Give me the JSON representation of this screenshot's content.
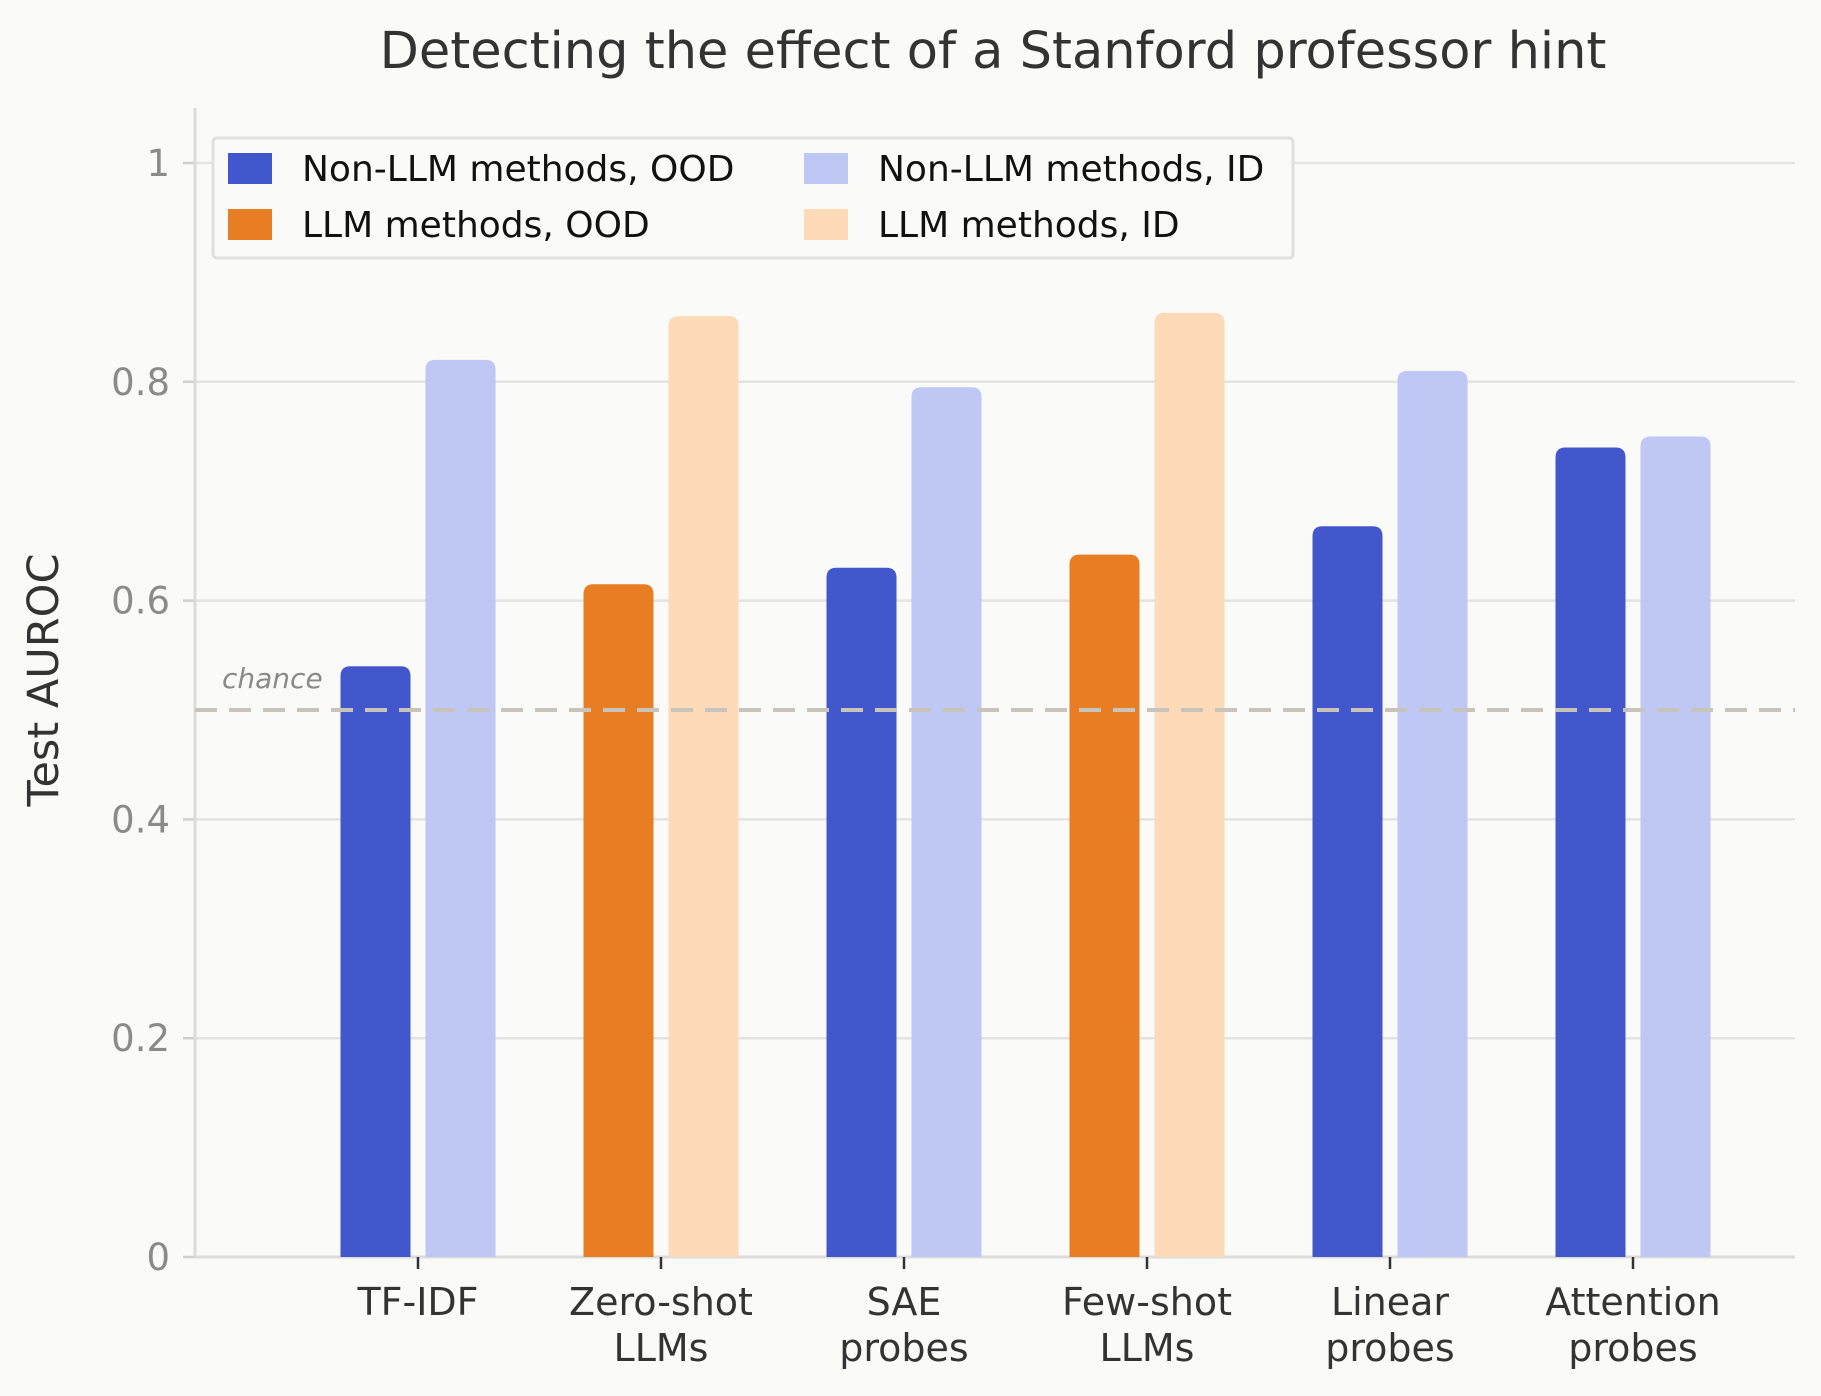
{
  "chart_data": {
    "type": "bar",
    "title": "Detecting the effect of a Stanford professor hint",
    "xlabel": "",
    "ylabel": "Test AUROC",
    "ylim": [
      0,
      1.05
    ],
    "yticks": [
      {
        "value": 0,
        "label": "0"
      },
      {
        "value": 0.2,
        "label": "0.2"
      },
      {
        "value": 0.4,
        "label": "0.4"
      },
      {
        "value": 0.6,
        "label": "0.6"
      },
      {
        "value": 0.8,
        "label": "0.8"
      },
      {
        "value": 1,
        "label": "1"
      }
    ],
    "grid": true,
    "legend_position": "top-left",
    "legend": [
      {
        "label": "Non-LLM methods, OOD",
        "color": "#4257cb"
      },
      {
        "label": "Non-LLM methods, ID",
        "color": "#bfc7f4"
      },
      {
        "label": "LLM methods, OOD",
        "color": "#e77e24"
      },
      {
        "label": "LLM methods, ID",
        "color": "#fddab8"
      }
    ],
    "reference_line": {
      "value": 0.5,
      "label": "chance",
      "color": "#c8c4bc"
    },
    "categories": [
      {
        "lines": [
          "TF-IDF"
        ],
        "ood": 0.54,
        "id": 0.82,
        "kind": "non_llm"
      },
      {
        "lines": [
          "Zero-shot",
          "LLMs"
        ],
        "ood": 0.615,
        "id": 0.86,
        "kind": "llm"
      },
      {
        "lines": [
          "SAE",
          "probes"
        ],
        "ood": 0.63,
        "id": 0.795,
        "kind": "non_llm"
      },
      {
        "lines": [
          "Few-shot",
          "LLMs"
        ],
        "ood": 0.642,
        "id": 0.863,
        "kind": "llm"
      },
      {
        "lines": [
          "Linear",
          "probes"
        ],
        "ood": 0.668,
        "id": 0.81,
        "kind": "non_llm"
      },
      {
        "lines": [
          "Attention",
          "probes"
        ],
        "ood": 0.74,
        "id": 0.75,
        "kind": "non_llm"
      }
    ],
    "colors": {
      "non_llm": {
        "ood": "#4257cb",
        "id": "#bfc7f4"
      },
      "llm": {
        "ood": "#e77e24",
        "id": "#fddab8"
      }
    }
  }
}
